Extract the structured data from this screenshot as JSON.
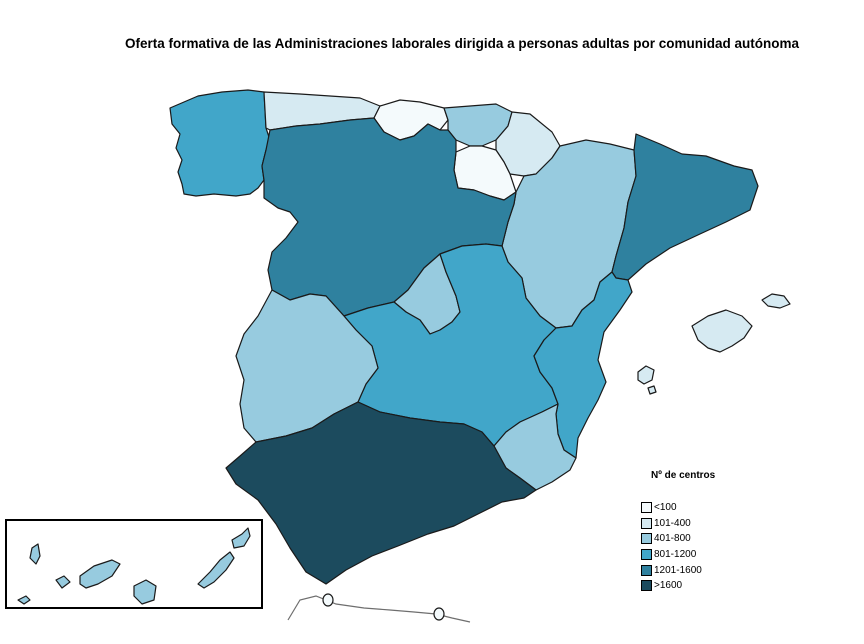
{
  "title": "Oferta formativa de las Administraciones laborales dirigida a personas adultas por comunidad autónoma",
  "legend": {
    "title": "Nº de centros",
    "items": [
      {
        "label": "<100",
        "color": "#f4fafc"
      },
      {
        "label": "101-400",
        "color": "#d6eaf2"
      },
      {
        "label": "401-800",
        "color": "#97cbdf"
      },
      {
        "label": "801-1200",
        "color": "#41a6c9"
      },
      {
        "label": "1201-1600",
        "color": "#2f819f"
      },
      {
        "label": ">1600",
        "color": "#1c4b5e"
      }
    ]
  },
  "regions": [
    {
      "id": "galicia",
      "category": "801-1200"
    },
    {
      "id": "asturias",
      "category": "101-400"
    },
    {
      "id": "cantabria",
      "category": "<100"
    },
    {
      "id": "pais-vasco",
      "category": "401-800"
    },
    {
      "id": "navarra",
      "category": "101-400"
    },
    {
      "id": "la-rioja",
      "category": "<100"
    },
    {
      "id": "aragon",
      "category": "401-800"
    },
    {
      "id": "cataluna",
      "category": "1201-1600"
    },
    {
      "id": "castilla-y-leon",
      "category": "1201-1600"
    },
    {
      "id": "madrid",
      "category": "401-800"
    },
    {
      "id": "castilla-la-mancha",
      "category": "801-1200"
    },
    {
      "id": "extremadura",
      "category": "401-800"
    },
    {
      "id": "comunitat-valenciana",
      "category": "801-1200"
    },
    {
      "id": "murcia",
      "category": "401-800"
    },
    {
      "id": "andalucia",
      "category": ">1600"
    },
    {
      "id": "baleares",
      "category": "101-400"
    },
    {
      "id": "canarias",
      "category": "401-800"
    },
    {
      "id": "ceuta",
      "category": "<100"
    },
    {
      "id": "melilla",
      "category": "<100"
    }
  ]
}
